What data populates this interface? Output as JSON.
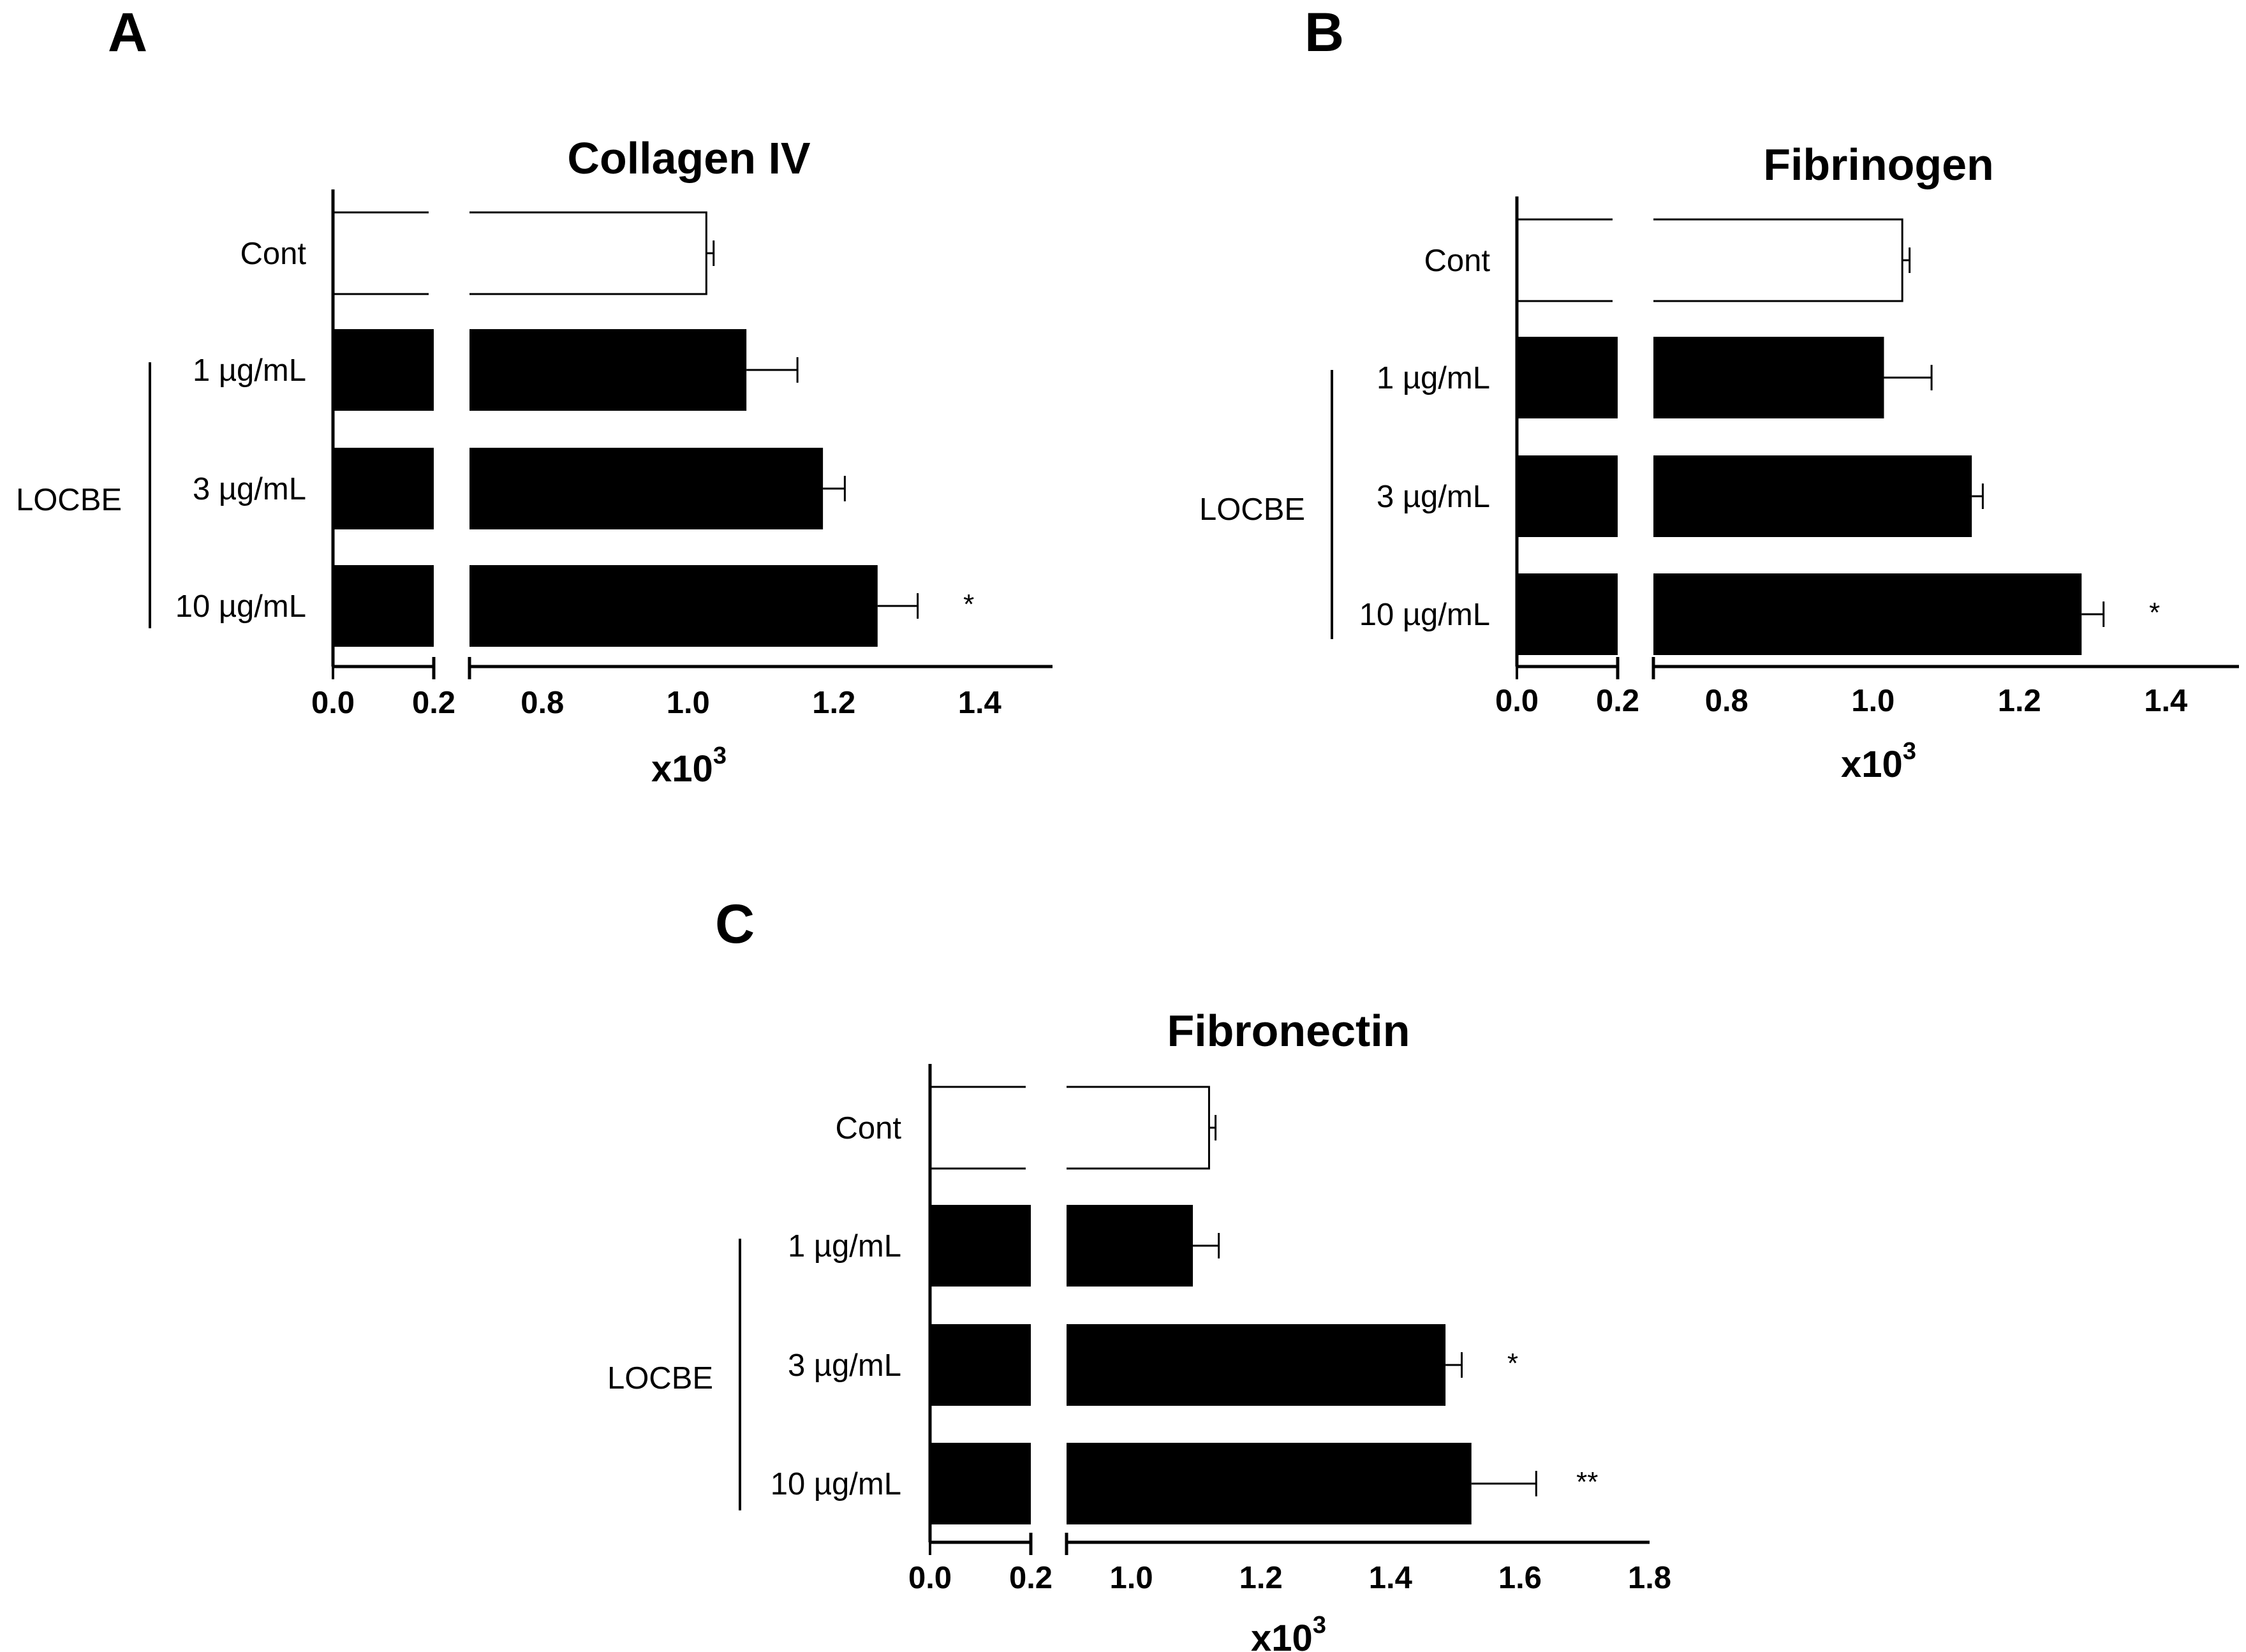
{
  "figure": {
    "panels": [
      "A",
      "B",
      "C"
    ]
  },
  "chart_data": [
    {
      "type": "bar",
      "orientation": "horizontal",
      "panel": "A",
      "title": "Collagen IV",
      "categories": [
        "Cont",
        "1 µg/mL",
        "3 µg/mL",
        "10 µg/mL"
      ],
      "group_label": "LOCBE",
      "group_members": [
        "1 µg/mL",
        "3 µg/mL",
        "10 µg/mL"
      ],
      "values": [
        1.025,
        1.08,
        1.185,
        1.26
      ],
      "errors": [
        0.01,
        0.07,
        0.03,
        0.055
      ],
      "significance": [
        "",
        "",
        "",
        "*"
      ],
      "bar_colors": [
        "#ffffff",
        "#000000",
        "#000000",
        "#000000"
      ],
      "xlabel": "x10",
      "xlabel_exponent": "3",
      "axis_break": [
        0.2,
        0.7
      ],
      "xlim_low": [
        0.0,
        0.2
      ],
      "xlim_high": [
        0.7,
        1.5
      ],
      "xticks_low": [
        "0.0",
        "0.2"
      ],
      "xticks_high": [
        "0.8",
        "1.0",
        "1.2",
        "1.4"
      ]
    },
    {
      "type": "bar",
      "orientation": "horizontal",
      "panel": "B",
      "title": "Fibrinogen",
      "categories": [
        "Cont",
        "1 µg/mL",
        "3 µg/mL",
        "10 µg/mL"
      ],
      "group_label": "LOCBE",
      "group_members": [
        "1 µg/mL",
        "3 µg/mL",
        "10 µg/mL"
      ],
      "values": [
        1.04,
        1.015,
        1.135,
        1.285
      ],
      "errors": [
        0.01,
        0.065,
        0.015,
        0.03
      ],
      "significance": [
        "",
        "",
        "",
        "*"
      ],
      "bar_colors": [
        "#ffffff",
        "#000000",
        "#000000",
        "#000000"
      ],
      "xlabel": "x10",
      "xlabel_exponent": "3",
      "axis_break": [
        0.2,
        0.7
      ],
      "xlim_low": [
        0.0,
        0.2
      ],
      "xlim_high": [
        0.7,
        1.5
      ],
      "xticks_low": [
        "0.0",
        "0.2"
      ],
      "xticks_high": [
        "0.8",
        "1.0",
        "1.2",
        "1.4"
      ]
    },
    {
      "type": "bar",
      "orientation": "horizontal",
      "panel": "C",
      "title": "Fibronectin",
      "categories": [
        "Cont",
        "1 µg/mL",
        "3 µg/mL",
        "10 µg/mL"
      ],
      "group_label": "LOCBE",
      "group_members": [
        "1 µg/mL",
        "3 µg/mL",
        "10 µg/mL"
      ],
      "values": [
        1.12,
        1.095,
        1.485,
        1.525
      ],
      "errors": [
        0.01,
        0.04,
        0.025,
        0.1
      ],
      "significance": [
        "",
        "",
        "*",
        "**"
      ],
      "bar_colors": [
        "#ffffff",
        "#000000",
        "#000000",
        "#000000"
      ],
      "xlabel": "x10",
      "xlabel_exponent": "3",
      "axis_break": [
        0.2,
        0.9
      ],
      "xlim_low": [
        0.0,
        0.2
      ],
      "xlim_high": [
        0.9,
        1.8
      ],
      "xticks_low": [
        "0.0",
        "0.2"
      ],
      "xticks_high": [
        "1.0",
        "1.2",
        "1.4",
        "1.6",
        "1.8"
      ]
    }
  ]
}
